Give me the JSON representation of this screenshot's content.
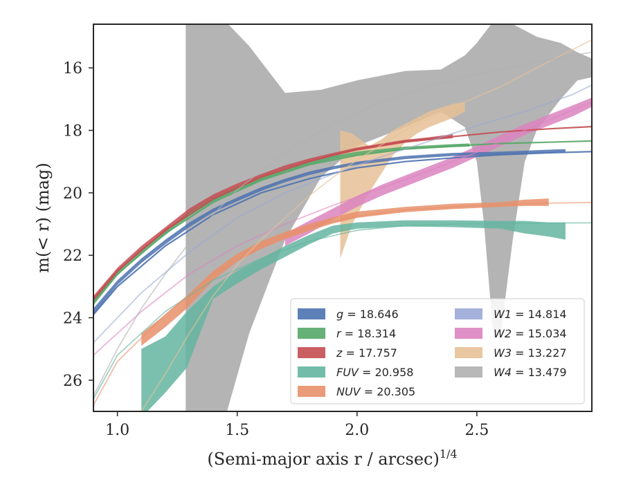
{
  "chart_data": {
    "type": "line",
    "xlabel": "(Semi-major axis r / arcsec)",
    "xlabel_exp": "1/4",
    "ylabel": "m(< r) (mag)",
    "xlim": [
      0.9,
      2.98
    ],
    "ylim": [
      27.0,
      14.6
    ],
    "y_inverted": true,
    "xticks": [
      1.0,
      1.5,
      2.0,
      2.5
    ],
    "xtick_labels": [
      "1.0",
      "1.5",
      "2.0",
      "2.5"
    ],
    "yticks": [
      16,
      18,
      20,
      22,
      24,
      26
    ],
    "ytick_labels": [
      "16",
      "18",
      "20",
      "22",
      "24",
      "26"
    ],
    "grid": false,
    "legend_position": "lower-right",
    "series": [
      {
        "name": "g = 18.646",
        "label": "g",
        "value": "18.646",
        "color": "#4c72b0",
        "band": [
          [
            0.9,
            23.7,
            23.9
          ],
          [
            1.0,
            22.8,
            22.95
          ],
          [
            1.1,
            22.1,
            22.25
          ],
          [
            1.2,
            21.5,
            21.65
          ],
          [
            1.3,
            20.95,
            21.1
          ],
          [
            1.4,
            20.5,
            20.62
          ],
          [
            1.5,
            20.15,
            20.27
          ],
          [
            1.6,
            19.82,
            19.94
          ],
          [
            1.7,
            19.55,
            19.66
          ],
          [
            1.8,
            19.32,
            19.43
          ],
          [
            1.9,
            19.15,
            19.25
          ],
          [
            2.0,
            19.0,
            19.1
          ],
          [
            2.2,
            18.82,
            18.92
          ],
          [
            2.4,
            18.72,
            18.82
          ],
          [
            2.6,
            18.68,
            18.78
          ],
          [
            2.8,
            18.62,
            18.72
          ],
          [
            2.87,
            18.6,
            18.7
          ]
        ],
        "model": [
          [
            0.9,
            23.9
          ],
          [
            1.0,
            23.0
          ],
          [
            1.2,
            21.7
          ],
          [
            1.4,
            20.7
          ],
          [
            1.6,
            20.0
          ],
          [
            1.8,
            19.55
          ],
          [
            2.0,
            19.2
          ],
          [
            2.2,
            19.0
          ],
          [
            2.4,
            18.88
          ],
          [
            2.6,
            18.78
          ],
          [
            2.8,
            18.72
          ],
          [
            2.98,
            18.68
          ]
        ]
      },
      {
        "name": "r = 18.314",
        "label": "r",
        "value": "18.314",
        "color": "#55a868",
        "band": [
          [
            0.9,
            23.4,
            23.6
          ],
          [
            1.0,
            22.5,
            22.65
          ],
          [
            1.1,
            21.8,
            21.95
          ],
          [
            1.2,
            21.2,
            21.35
          ],
          [
            1.3,
            20.6,
            20.75
          ],
          [
            1.4,
            20.15,
            20.27
          ],
          [
            1.5,
            19.8,
            19.92
          ],
          [
            1.6,
            19.5,
            19.6
          ],
          [
            1.7,
            19.22,
            19.32
          ],
          [
            1.8,
            19.0,
            19.1
          ],
          [
            1.9,
            18.82,
            18.92
          ],
          [
            2.0,
            18.68,
            18.78
          ],
          [
            2.2,
            18.52,
            18.62
          ],
          [
            2.4,
            18.44,
            18.54
          ],
          [
            2.47,
            18.42,
            18.52
          ]
        ],
        "model": [
          [
            0.9,
            23.5
          ],
          [
            1.0,
            22.6
          ],
          [
            1.2,
            21.3
          ],
          [
            1.4,
            20.3
          ],
          [
            1.6,
            19.6
          ],
          [
            1.8,
            19.1
          ],
          [
            2.0,
            18.8
          ],
          [
            2.2,
            18.6
          ],
          [
            2.4,
            18.5
          ],
          [
            2.6,
            18.42
          ],
          [
            2.8,
            18.38
          ],
          [
            2.98,
            18.34
          ]
        ]
      },
      {
        "name": "z = 17.757",
        "label": "z",
        "value": "17.757",
        "color": "#c44e52",
        "band": [
          [
            0.9,
            23.3,
            23.5
          ],
          [
            1.0,
            22.4,
            22.55
          ],
          [
            1.1,
            21.7,
            21.85
          ],
          [
            1.2,
            21.1,
            21.25
          ],
          [
            1.3,
            20.5,
            20.65
          ],
          [
            1.4,
            20.05,
            20.17
          ],
          [
            1.5,
            19.7,
            19.82
          ],
          [
            1.6,
            19.4,
            19.5
          ],
          [
            1.7,
            19.12,
            19.22
          ],
          [
            1.8,
            18.9,
            19.0
          ],
          [
            1.9,
            18.72,
            18.82
          ],
          [
            2.0,
            18.55,
            18.65
          ],
          [
            2.2,
            18.3,
            18.4
          ],
          [
            2.3,
            18.22,
            18.32
          ],
          [
            2.4,
            18.12,
            18.25
          ]
        ],
        "model": [
          [
            0.9,
            23.4
          ],
          [
            1.0,
            22.5
          ],
          [
            1.2,
            21.2
          ],
          [
            1.4,
            20.2
          ],
          [
            1.6,
            19.5
          ],
          [
            1.8,
            19.0
          ],
          [
            2.0,
            18.6
          ],
          [
            2.2,
            18.35
          ],
          [
            2.4,
            18.2
          ],
          [
            2.6,
            18.05
          ],
          [
            2.8,
            17.95
          ],
          [
            2.98,
            17.88
          ]
        ]
      },
      {
        "name": "FUV = 20.958",
        "label": "FUV",
        "value": "20.958",
        "color": "#64b5a0",
        "band": [
          [
            1.1,
            25.0,
            27.2
          ],
          [
            1.2,
            24.6,
            26.4
          ],
          [
            1.29,
            23.8,
            25.6
          ],
          [
            1.4,
            23.0,
            23.4
          ],
          [
            1.5,
            22.5,
            22.9
          ],
          [
            1.6,
            22.1,
            22.45
          ],
          [
            1.7,
            21.7,
            22.05
          ],
          [
            1.8,
            21.35,
            21.65
          ],
          [
            1.9,
            21.05,
            21.3
          ],
          [
            2.0,
            20.95,
            21.15
          ],
          [
            2.2,
            20.88,
            21.08
          ],
          [
            2.4,
            20.88,
            21.1
          ],
          [
            2.6,
            20.9,
            21.15
          ],
          [
            2.7,
            20.9,
            21.3
          ],
          [
            2.8,
            20.95,
            21.4
          ],
          [
            2.87,
            20.95,
            21.5
          ]
        ],
        "model": [
          [
            0.9,
            26.6
          ],
          [
            1.0,
            25.2
          ],
          [
            1.2,
            23.8
          ],
          [
            1.4,
            22.8
          ],
          [
            1.6,
            22.1
          ],
          [
            1.8,
            21.55
          ],
          [
            2.0,
            21.2
          ],
          [
            2.2,
            21.05
          ],
          [
            2.4,
            21.0
          ],
          [
            2.6,
            20.98
          ],
          [
            2.8,
            20.97
          ],
          [
            2.98,
            20.96
          ]
        ]
      },
      {
        "name": "NUV = 20.305",
        "label": "NUV",
        "value": "20.305",
        "color": "#e8906a",
        "band": [
          [
            1.1,
            24.5,
            24.9
          ],
          [
            1.2,
            23.9,
            24.3
          ],
          [
            1.29,
            23.3,
            23.7
          ],
          [
            1.4,
            22.5,
            22.8
          ],
          [
            1.5,
            21.95,
            22.2
          ],
          [
            1.6,
            21.55,
            21.8
          ],
          [
            1.7,
            21.25,
            21.48
          ],
          [
            1.8,
            21.0,
            21.22
          ],
          [
            1.9,
            20.78,
            20.98
          ],
          [
            2.0,
            20.6,
            20.8
          ],
          [
            2.2,
            20.45,
            20.62
          ],
          [
            2.4,
            20.35,
            20.52
          ],
          [
            2.6,
            20.3,
            20.45
          ],
          [
            2.7,
            20.22,
            20.42
          ],
          [
            2.8,
            20.18,
            20.42
          ]
        ],
        "model": [
          [
            0.9,
            26.8
          ],
          [
            1.0,
            25.4
          ],
          [
            1.2,
            23.9
          ],
          [
            1.4,
            22.6
          ],
          [
            1.6,
            21.7
          ],
          [
            1.8,
            21.1
          ],
          [
            2.0,
            20.75
          ],
          [
            2.2,
            20.55
          ],
          [
            2.4,
            20.45
          ],
          [
            2.6,
            20.38
          ],
          [
            2.8,
            20.33
          ],
          [
            2.98,
            20.31
          ]
        ]
      },
      {
        "name": "W1 = 14.814",
        "label": "W1",
        "value": "14.814",
        "color": "#9aa9d6",
        "band": [],
        "model": [
          [
            0.9,
            24.8
          ],
          [
            1.1,
            23.2
          ],
          [
            1.3,
            21.9
          ],
          [
            1.5,
            20.8
          ],
          [
            1.7,
            20.0
          ],
          [
            1.9,
            19.4
          ],
          [
            2.1,
            18.85
          ],
          [
            2.3,
            18.35
          ],
          [
            2.5,
            17.85
          ],
          [
            2.7,
            17.4
          ],
          [
            2.9,
            16.85
          ],
          [
            2.98,
            16.55
          ]
        ]
      },
      {
        "name": "W2 = 15.034",
        "label": "W2",
        "value": "15.034",
        "color": "#dc84c0",
        "band": [
          [
            1.7,
            21.3,
            21.7
          ],
          [
            1.8,
            20.9,
            21.3
          ],
          [
            1.9,
            20.5,
            20.85
          ],
          [
            2.0,
            20.1,
            20.45
          ],
          [
            2.1,
            19.75,
            20.1
          ],
          [
            2.2,
            19.45,
            19.8
          ],
          [
            2.3,
            19.15,
            19.5
          ],
          [
            2.4,
            18.85,
            19.2
          ],
          [
            2.5,
            18.5,
            18.85
          ],
          [
            2.6,
            18.15,
            18.5
          ],
          [
            2.7,
            17.8,
            18.15
          ],
          [
            2.8,
            17.5,
            17.85
          ],
          [
            2.9,
            17.2,
            17.55
          ],
          [
            2.98,
            16.95,
            17.25
          ]
        ],
        "model": [
          [
            0.9,
            25.2
          ],
          [
            1.1,
            23.8
          ],
          [
            1.3,
            22.6
          ],
          [
            1.5,
            21.7
          ],
          [
            1.7,
            21.0
          ],
          [
            1.9,
            20.4
          ],
          [
            2.1,
            19.85
          ],
          [
            2.3,
            19.3
          ],
          [
            2.5,
            18.7
          ],
          [
            2.7,
            18.0
          ],
          [
            2.9,
            17.35
          ],
          [
            2.98,
            17.1
          ]
        ]
      },
      {
        "name": "W3 = 13.227",
        "label": "W3",
        "value": "13.227",
        "color": "#e6c197",
        "band": [
          [
            1.93,
            18.0,
            22.1
          ],
          [
            1.98,
            18.1,
            21.0
          ],
          [
            2.05,
            18.5,
            20.0
          ],
          [
            2.1,
            18.3,
            19.4
          ],
          [
            2.15,
            18.0,
            18.8
          ],
          [
            2.2,
            17.8,
            18.4
          ],
          [
            2.25,
            17.6,
            18.1
          ],
          [
            2.3,
            17.4,
            17.9
          ],
          [
            2.4,
            17.15,
            17.6
          ],
          [
            2.45,
            17.1,
            17.4
          ]
        ],
        "model": [
          [
            1.1,
            27.0
          ],
          [
            1.2,
            25.8
          ],
          [
            1.3,
            24.5
          ],
          [
            1.4,
            23.3
          ],
          [
            1.5,
            22.3
          ],
          [
            1.6,
            21.5
          ],
          [
            1.7,
            20.8
          ],
          [
            1.8,
            20.1
          ],
          [
            1.9,
            19.5
          ],
          [
            2.0,
            18.95
          ],
          [
            2.2,
            18.0
          ],
          [
            2.4,
            17.25
          ],
          [
            2.6,
            16.6
          ],
          [
            2.8,
            15.8
          ],
          [
            2.98,
            15.1
          ]
        ]
      },
      {
        "name": "W4 = 13.479",
        "label": "W4",
        "value": "13.479",
        "color": "#b0b0b0",
        "band": [
          [
            1.285,
            14.5,
            27.2
          ],
          [
            1.3,
            14.5,
            27.2
          ],
          [
            1.45,
            14.5,
            27.2
          ],
          [
            1.55,
            15.3,
            24.5
          ],
          [
            1.7,
            16.8,
            21.5
          ],
          [
            1.85,
            16.7,
            19.5
          ],
          [
            2.0,
            16.4,
            18.5
          ],
          [
            2.2,
            16.1,
            17.9
          ],
          [
            2.35,
            16.05,
            17.4
          ],
          [
            2.45,
            15.6,
            17.9
          ],
          [
            2.5,
            15.2,
            19.0
          ],
          [
            2.53,
            14.9,
            21.0
          ],
          [
            2.57,
            14.5,
            24.7
          ],
          [
            2.6,
            14.5,
            24.5
          ],
          [
            2.65,
            14.6,
            21.5
          ],
          [
            2.7,
            14.8,
            19.0
          ],
          [
            2.75,
            15.0,
            18.0
          ],
          [
            2.85,
            15.2,
            17.0
          ],
          [
            2.92,
            15.5,
            16.4
          ],
          [
            2.98,
            15.7,
            16.3
          ]
        ],
        "model": [
          [
            0.9,
            26.5
          ],
          [
            1.0,
            25.0
          ],
          [
            1.1,
            23.7
          ],
          [
            1.2,
            22.6
          ],
          [
            1.3,
            21.6
          ],
          [
            1.4,
            20.7
          ],
          [
            1.5,
            19.9
          ],
          [
            1.7,
            18.7
          ],
          [
            1.9,
            17.8
          ],
          [
            2.1,
            17.1
          ],
          [
            2.3,
            16.6
          ],
          [
            2.5,
            16.2
          ],
          [
            2.7,
            15.9
          ],
          [
            2.9,
            15.6
          ],
          [
            2.98,
            15.5
          ]
        ]
      }
    ]
  }
}
